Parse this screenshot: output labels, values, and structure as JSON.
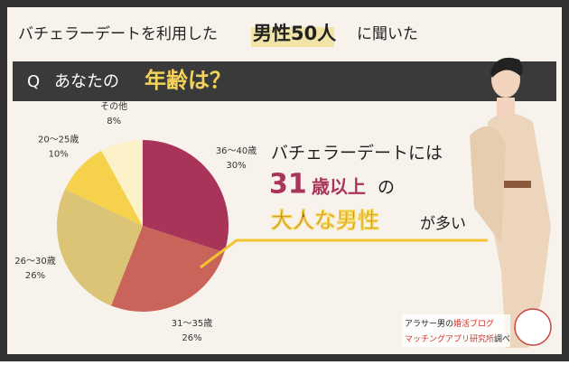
{
  "header": {
    "lead": "バチェラーデートを利用した",
    "emphasis": "男性50人",
    "tail": "に聞いた"
  },
  "question": {
    "prefix": "Q",
    "text": "あなたの",
    "emphasis": "年齢は？"
  },
  "chart_data": {
    "type": "pie",
    "categories": [
      "36～40歳",
      "31～35歳",
      "26～30歳",
      "20～25歳",
      "その他"
    ],
    "values": [
      30,
      26,
      26,
      10,
      8
    ],
    "value_labels": [
      "30%",
      "26%",
      "26%",
      "10%",
      "8%"
    ],
    "colors": [
      "#a83459",
      "#c9645b",
      "#dcc476",
      "#f6d24c",
      "#fdf1c9"
    ]
  },
  "callout": {
    "line1": "バチェラーデートには",
    "number": "31",
    "unit": "歳以上",
    "particle": "の",
    "emphasis": "大人な男性",
    "tail": "が多い"
  },
  "credit": {
    "line1a": "アラサー男の",
    "line1b": "婚活ブログ",
    "line2a": "マッチングアプリ研究所",
    "line2b": "調べ"
  }
}
